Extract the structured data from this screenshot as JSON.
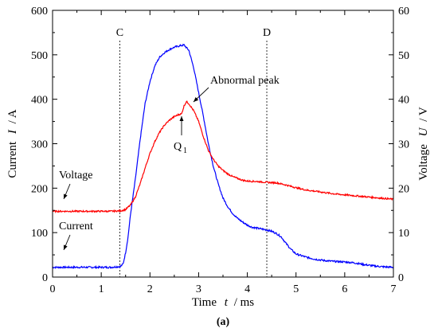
{
  "chart_data": {
    "type": "line",
    "panel_label": "(a)",
    "x_axis": {
      "label_prefix": "Time",
      "label_var": "t",
      "label_unit": "/ ms",
      "range": [
        0,
        7
      ],
      "ticks": [
        "0",
        "1",
        "2",
        "3",
        "4",
        "5",
        "6",
        "7"
      ]
    },
    "y_left": {
      "label_prefix": "Current",
      "label_var": "I",
      "label_unit": "/ A",
      "range": [
        0,
        600
      ],
      "ticks": [
        "0",
        "100",
        "200",
        "300",
        "400",
        "500",
        "600"
      ]
    },
    "y_right": {
      "label_prefix": "Voltage",
      "label_var": "U",
      "label_unit": "/ V",
      "range": [
        0,
        60
      ],
      "ticks": [
        "0",
        "10",
        "20",
        "30",
        "40",
        "50",
        "60"
      ]
    },
    "grid": false,
    "series": [
      {
        "name": "Current",
        "axis": "left",
        "color": "#0000ff",
        "x": [
          0,
          0.3,
          0.6,
          0.9,
          1.2,
          1.4,
          1.45,
          1.5,
          1.55,
          1.6,
          1.7,
          1.8,
          1.9,
          2.0,
          2.1,
          2.2,
          2.3,
          2.4,
          2.5,
          2.6,
          2.7,
          2.8,
          2.9,
          3.0,
          3.1,
          3.2,
          3.3,
          3.4,
          3.5,
          3.6,
          3.7,
          3.8,
          3.9,
          4.0,
          4.1,
          4.2,
          4.3,
          4.4,
          4.5,
          4.6,
          4.7,
          4.8,
          4.9,
          5.0,
          5.2,
          5.4,
          5.6,
          5.8,
          6.0,
          6.2,
          6.4,
          6.6,
          6.8,
          7.0
        ],
        "y": [
          22,
          22,
          22,
          22,
          22,
          24,
          30,
          55,
          90,
          140,
          220,
          310,
          390,
          440,
          475,
          495,
          505,
          512,
          517,
          520,
          522,
          510,
          470,
          415,
          360,
          300,
          250,
          210,
          178,
          158,
          143,
          132,
          124,
          117,
          112,
          110,
          108,
          106,
          103,
          98,
          90,
          75,
          62,
          52,
          45,
          40,
          37,
          35,
          34,
          32,
          28,
          25,
          23,
          22
        ]
      },
      {
        "name": "Voltage",
        "axis": "right",
        "color": "#ff0000",
        "x": [
          0,
          0.3,
          0.6,
          0.9,
          1.2,
          1.4,
          1.5,
          1.6,
          1.7,
          1.8,
          1.9,
          2.0,
          2.1,
          2.2,
          2.3,
          2.4,
          2.5,
          2.6,
          2.65,
          2.7,
          2.75,
          2.8,
          2.85,
          2.9,
          3.0,
          3.1,
          3.2,
          3.3,
          3.4,
          3.5,
          3.6,
          3.7,
          3.8,
          3.9,
          4.0,
          4.2,
          4.4,
          4.6,
          4.8,
          5.0,
          5.2,
          5.4,
          5.6,
          5.8,
          6.0,
          6.2,
          6.4,
          6.6,
          6.8,
          7.0
        ],
        "y": [
          14.8,
          14.8,
          14.8,
          14.8,
          14.8,
          14.9,
          15.2,
          16.2,
          18,
          21,
          24.5,
          27.8,
          30.5,
          32.6,
          34.2,
          35.3,
          36.1,
          36.6,
          36.7,
          38.5,
          39.5,
          39,
          38.2,
          37.4,
          35,
          31.5,
          28.5,
          26.5,
          25,
          24,
          23.2,
          22.6,
          22.2,
          21.8,
          21.6,
          21.5,
          21.3,
          21.2,
          20.7,
          20.1,
          19.6,
          19.3,
          19,
          18.7,
          18.5,
          18.3,
          18.1,
          17.9,
          17.7,
          17.5
        ]
      }
    ],
    "vertical_markers": [
      {
        "label": "C",
        "x": 1.38
      },
      {
        "label": "D",
        "x": 4.4
      }
    ],
    "annotations": {
      "voltage_label": "Voltage",
      "current_label": "Current",
      "abnormal_peak": "Abnormal peak",
      "q_label": "Q",
      "q_sub": "1"
    }
  }
}
